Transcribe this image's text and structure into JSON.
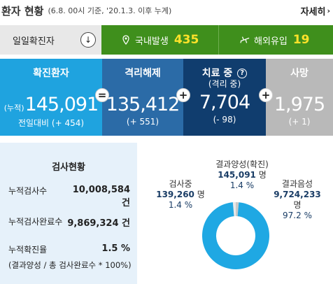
{
  "header": {
    "title": "환자 현황",
    "subtitle": "(6.8. 00시 기준, '20.1.3. 이후 누계)",
    "more_label": "자세히"
  },
  "daily": {
    "label": "일일확진자",
    "domestic_label": "국내발생",
    "domestic_value": "435",
    "overseas_label": "해외유입",
    "overseas_value": "19"
  },
  "stats": {
    "confirmed": {
      "label": "확진환자",
      "prefix": "(누적)",
      "value": "145,091",
      "compare": "전일대비 (+ 454)"
    },
    "released": {
      "label": "격리해제",
      "value": "135,412",
      "compare": "(+ 551)"
    },
    "treating": {
      "label": "치료 중",
      "label2": "(격리 중)",
      "value": "7,704",
      "compare": "(- 98)"
    },
    "deaths": {
      "label": "사망",
      "value": "1,975",
      "compare": "(+ 1)"
    },
    "op_equals": "=",
    "op_plus": "+"
  },
  "test": {
    "title": "검사현황",
    "rows": [
      {
        "key": "누적검사수",
        "value": "10,008,584",
        "unit": "건"
      },
      {
        "key": "누적검사완료수",
        "value": "9,869,324 건"
      },
      {
        "key": "누적확진율",
        "value": "1.5 %"
      }
    ],
    "note": "(결과양성 / 총 검사완료수 * 100%)"
  },
  "pie": {
    "positive": {
      "label": "결과양성(확진)",
      "value": "145,091",
      "unit": "명",
      "pct": "1.4 %"
    },
    "testing": {
      "label": "검사중",
      "value": "139,260",
      "unit": "명",
      "pct": "1.4 %"
    },
    "negative": {
      "label": "결과음성",
      "value": "9,724,233",
      "unit": "명",
      "pct": "97.2 %"
    }
  },
  "chart_data": {
    "type": "pie",
    "categories": [
      "검사중",
      "결과양성(확진)",
      "결과음성"
    ],
    "values": [
      139260,
      145091,
      9724233
    ],
    "percentages": [
      1.4,
      1.4,
      97.2
    ],
    "colors": [
      "#e9e9e9",
      "#c9c9c9",
      "#1fa8e3"
    ]
  },
  "colors": {
    "green": "#3f8f1c",
    "accent_yellow": "#ffe229",
    "confirmed": "#1fa3df",
    "released": "#2b6ba7",
    "treating": "#103d6e",
    "deaths": "#b9b9b9"
  }
}
